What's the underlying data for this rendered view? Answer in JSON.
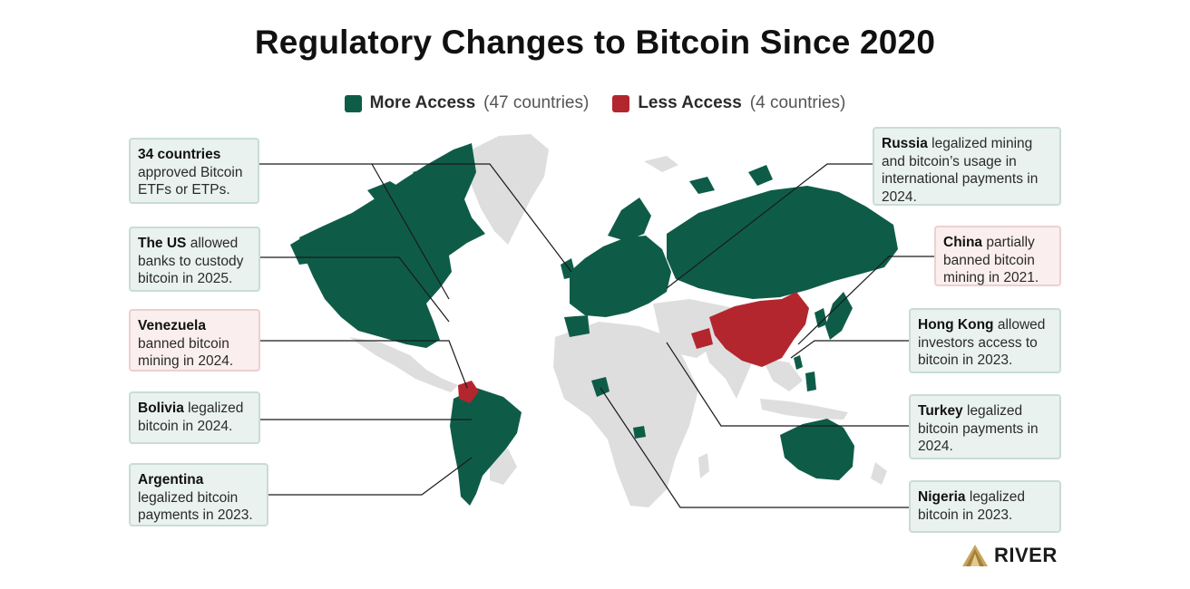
{
  "title": "Regulatory Changes to Bitcoin Since 2020",
  "legend": {
    "more": {
      "label": "More Access",
      "count": "(47 countries)",
      "color": "#0e5c48"
    },
    "less": {
      "label": "Less Access",
      "count": "(4 countries)",
      "color": "#b3262e"
    }
  },
  "colors": {
    "neutral": "#dedede",
    "more": "#0e5c48",
    "less": "#b3262e"
  },
  "callouts": {
    "etfs": {
      "bold": "34 countries",
      "text": " approved Bitcoin ETFs or ETPs.",
      "status": "more"
    },
    "us": {
      "bold": "The US",
      "text": " allowed banks to custody bitcoin in 2025.",
      "status": "more"
    },
    "venezuela": {
      "bold": "Venezuela",
      "text": " banned bitcoin mining in 2024.",
      "status": "less"
    },
    "bolivia": {
      "bold": "Bolivia",
      "text": " legalized bitcoin in 2024.",
      "status": "more"
    },
    "argentina": {
      "bold": "Argentina",
      "text": " legalized bitcoin payments in 2023.",
      "status": "more"
    },
    "russia": {
      "bold": "Russia",
      "text": " legalized mining and bitcoin’s usage in international payments in 2024.",
      "status": "more"
    },
    "china": {
      "bold": "China",
      "text": " partially banned bitcoin mining in 2021.",
      "status": "less"
    },
    "hongkong": {
      "bold": "Hong Kong",
      "text": " allowed investors access to bitcoin in 2023.",
      "status": "more"
    },
    "turkey": {
      "bold": "Turkey",
      "text": " legalized bitcoin payments in 2024.",
      "status": "more"
    },
    "nigeria": {
      "bold": "Nigeria",
      "text": " legalized bitcoin in 2023.",
      "status": "more"
    }
  },
  "logo": {
    "text": "RIVER",
    "icon": "river-mountain-icon"
  }
}
